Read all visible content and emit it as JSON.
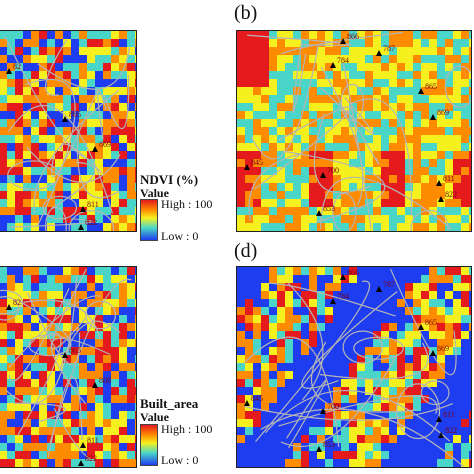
{
  "panels": [
    {
      "id": "a",
      "label": ""
    },
    {
      "id": "b",
      "label": "(b)"
    },
    {
      "id": "c",
      "label": ""
    },
    {
      "id": "d",
      "label": "(d)"
    }
  ],
  "legend_top": {
    "title": "NDVI (%)",
    "value_label": "Value",
    "high": "High : 100",
    "low": "Low : 0"
  },
  "legend_bottom": {
    "title": "Built_area",
    "value_label": "Value",
    "high": "High : 100",
    "low": "Low : 0"
  },
  "colors": {
    "high": "#e41a1c",
    "mid_high": "#ff8c00",
    "mid": "#f6f01e",
    "mid_low": "#49d6c8",
    "low": "#1e3cf0",
    "road": "#b5b5b5"
  },
  "stations": {
    "a": [
      {
        "id": "82"
      },
      {
        "id": "865"
      },
      {
        "id": "869"
      },
      {
        "id": "811"
      },
      {
        "id": "822"
      }
    ],
    "b": [
      {
        "id": "866"
      },
      {
        "id": "787"
      },
      {
        "id": "784"
      },
      {
        "id": "865"
      },
      {
        "id": "869"
      },
      {
        "id": "845"
      },
      {
        "id": "700"
      },
      {
        "id": "811"
      },
      {
        "id": "822"
      },
      {
        "id": "853"
      }
    ],
    "c": [
      {
        "id": "82"
      },
      {
        "id": "865"
      },
      {
        "id": "869"
      },
      {
        "id": "811"
      },
      {
        "id": "822"
      }
    ],
    "d": [
      {
        "id": "866"
      },
      {
        "id": "787"
      },
      {
        "id": "784"
      },
      {
        "id": "865"
      },
      {
        "id": "869"
      },
      {
        "id": "845"
      },
      {
        "id": "700"
      },
      {
        "id": "811"
      },
      {
        "id": "822"
      },
      {
        "id": "853"
      }
    ]
  }
}
